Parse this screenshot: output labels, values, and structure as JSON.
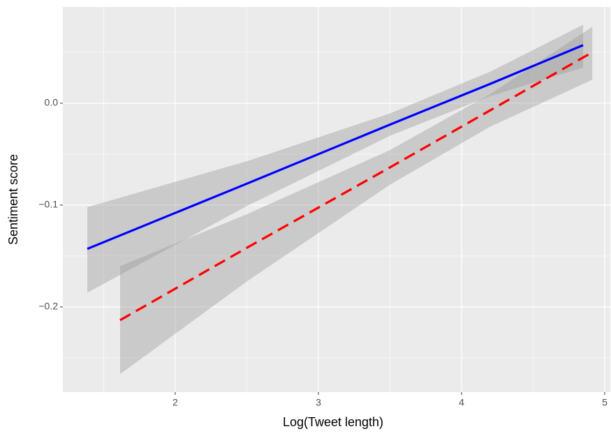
{
  "chart_data": {
    "type": "line",
    "x_label": "Log(Tweet length)",
    "y_label": "Sentiment score",
    "xlim": [
      1.215,
      5.039
    ],
    "ylim": [
      -0.2836,
      0.0945
    ],
    "xticks": [
      2,
      3,
      4,
      5
    ],
    "xminorticks": [
      1.5,
      2.5,
      3.5,
      4.5
    ],
    "yticks": [
      {
        "value": 0.0,
        "label": "0.0"
      },
      {
        "value": -0.1,
        "label": "−0.1"
      },
      {
        "value": -0.2,
        "label": "−0.2"
      }
    ],
    "yminorticks": [
      0.05,
      -0.05,
      -0.15,
      -0.25
    ],
    "grid": true,
    "band_color": "#999999",
    "series": [
      {
        "color": "#0000ff",
        "linetype": "solid",
        "x": [
          1.386,
          2.5,
          3.5,
          4.2,
          4.849
        ],
        "values": [
          -0.143,
          -0.079,
          -0.021,
          0.019,
          0.057
        ],
        "lower": [
          -0.186,
          -0.101,
          -0.032,
          0.007,
          0.035
        ],
        "upper": [
          -0.102,
          -0.057,
          -0.01,
          0.031,
          0.077
        ]
      },
      {
        "color": "#ff0000",
        "linetype": "dashed",
        "x": [
          1.615,
          2.5,
          3.5,
          4.2,
          4.913
        ],
        "values": [
          -0.213,
          -0.142,
          -0.063,
          -0.007,
          0.05
        ],
        "lower": [
          -0.266,
          -0.175,
          -0.08,
          -0.023,
          0.023
        ],
        "upper": [
          -0.16,
          -0.109,
          -0.046,
          0.009,
          0.075
        ]
      }
    ]
  }
}
